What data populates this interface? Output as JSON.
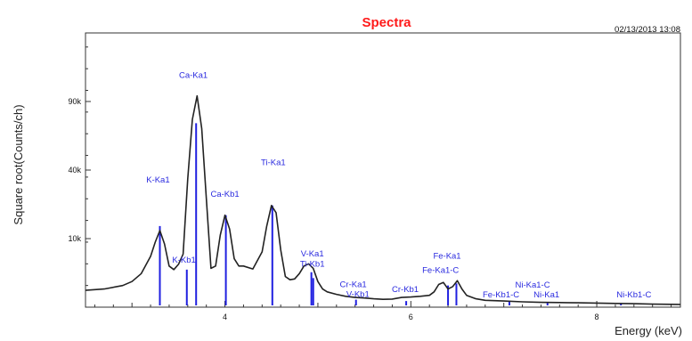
{
  "chart_data": {
    "type": "line",
    "title": "Spectra",
    "timestamp": "02/13/2013 13:08",
    "xlabel": "Energy (keV)",
    "ylabel": "Square root(Counts/ch)",
    "xlim": [
      2.5,
      8.9
    ],
    "y_scale": "sqrt",
    "ylim": [
      0,
      160000
    ],
    "x_ticks": [
      {
        "value": 4,
        "label": "4"
      },
      {
        "value": 6,
        "label": "6"
      },
      {
        "value": 8,
        "label": "8"
      }
    ],
    "y_ticks": [
      {
        "value": 10000,
        "label": "10k"
      },
      {
        "value": 40000,
        "label": "40k"
      },
      {
        "value": 90000,
        "label": "90k"
      }
    ],
    "grid": false,
    "colors": {
      "spectrum": "#222222",
      "markers": "#2020e0",
      "labels": "#2a2adf",
      "title": "#ff1a1a"
    },
    "series": [
      {
        "x": [
          2.5,
          2.7,
          2.9,
          3.0,
          3.1,
          3.2,
          3.25,
          3.3,
          3.35,
          3.4,
          3.45,
          3.5,
          3.55,
          3.6,
          3.65,
          3.7,
          3.75,
          3.8,
          3.85,
          3.9,
          3.95,
          4.0,
          4.05,
          4.1,
          4.15,
          4.2,
          4.3,
          4.4,
          4.45,
          4.5,
          4.55,
          4.6,
          4.65,
          4.7,
          4.75,
          4.8,
          4.85,
          4.9,
          4.95,
          5.0,
          5.05,
          5.1,
          5.2,
          5.3,
          5.4,
          5.5,
          5.6,
          5.7,
          5.8,
          5.9,
          6.0,
          6.1,
          6.2,
          6.25,
          6.3,
          6.35,
          6.4,
          6.45,
          6.5,
          6.55,
          6.6,
          6.7,
          6.8,
          7.0,
          7.2,
          7.4,
          7.6,
          7.8,
          8.0,
          8.2,
          8.4,
          8.6,
          8.9
        ],
        "y": [
          600,
          700,
          1000,
          1400,
          2400,
          5500,
          9000,
          12500,
          8500,
          3600,
          3000,
          3900,
          6000,
          35000,
          75000,
          95000,
          68000,
          25000,
          3200,
          3600,
          11000,
          18000,
          13000,
          5000,
          3600,
          3600,
          3100,
          6500,
          14000,
          22000,
          19000,
          7000,
          2000,
          1600,
          1700,
          2400,
          3600,
          4000,
          3200,
          1400,
          700,
          500,
          350,
          250,
          200,
          180,
          150,
          130,
          140,
          200,
          220,
          250,
          300,
          500,
          1100,
          1300,
          700,
          900,
          1500,
          700,
          300,
          150,
          100,
          80,
          60,
          50,
          45,
          40,
          35,
          30,
          25,
          20,
          15
        ]
      }
    ],
    "peak_lines": [
      {
        "x": 3.3,
        "y": 14000
      },
      {
        "x": 3.59,
        "y": 3000
      },
      {
        "x": 3.69,
        "y": 72000
      },
      {
        "x": 4.01,
        "y": 18000
      },
      {
        "x": 4.51,
        "y": 22000
      },
      {
        "x": 4.93,
        "y": 2600
      },
      {
        "x": 4.95,
        "y": 1800
      },
      {
        "x": 5.41,
        "y": 120
      },
      {
        "x": 5.95,
        "y": 80
      },
      {
        "x": 6.4,
        "y": 1000
      },
      {
        "x": 6.49,
        "y": 1200
      },
      {
        "x": 7.06,
        "y": 60
      },
      {
        "x": 7.47,
        "y": 40
      },
      {
        "x": 8.26,
        "y": 30
      }
    ],
    "peak_labels": [
      {
        "text": "K-Ka1",
        "x": 3.28,
        "y": 33000
      },
      {
        "text": "K-Kb1",
        "x": 3.56,
        "y": 4200
      },
      {
        "text": "Ca-Ka1",
        "x": 3.66,
        "y": 112000
      },
      {
        "text": "Ca-Kb1",
        "x": 4.0,
        "y": 26000
      },
      {
        "text": "Ti-Ka1",
        "x": 4.52,
        "y": 43000
      },
      {
        "text": "V-Ka1",
        "x": 4.94,
        "y": 5500
      },
      {
        "text": "Ti-Kb1",
        "x": 4.94,
        "y": 3500
      },
      {
        "text": "Cr-Ka1",
        "x": 5.38,
        "y": 850
      },
      {
        "text": "V-Kb1",
        "x": 5.43,
        "y": 230
      },
      {
        "text": "Cr-Kb1",
        "x": 5.94,
        "y": 500
      },
      {
        "text": "Fe-Ka1",
        "x": 6.39,
        "y": 5000
      },
      {
        "text": "Fe-Ka1-C",
        "x": 6.32,
        "y": 2500
      },
      {
        "text": "Ni-Ka1-C",
        "x": 7.31,
        "y": 800
      },
      {
        "text": "Fe-Kb1-C",
        "x": 6.97,
        "y": 200
      },
      {
        "text": "Ni-Ka1",
        "x": 7.46,
        "y": 200
      },
      {
        "text": "Ni-Kb1-C",
        "x": 8.4,
        "y": 200
      }
    ]
  }
}
